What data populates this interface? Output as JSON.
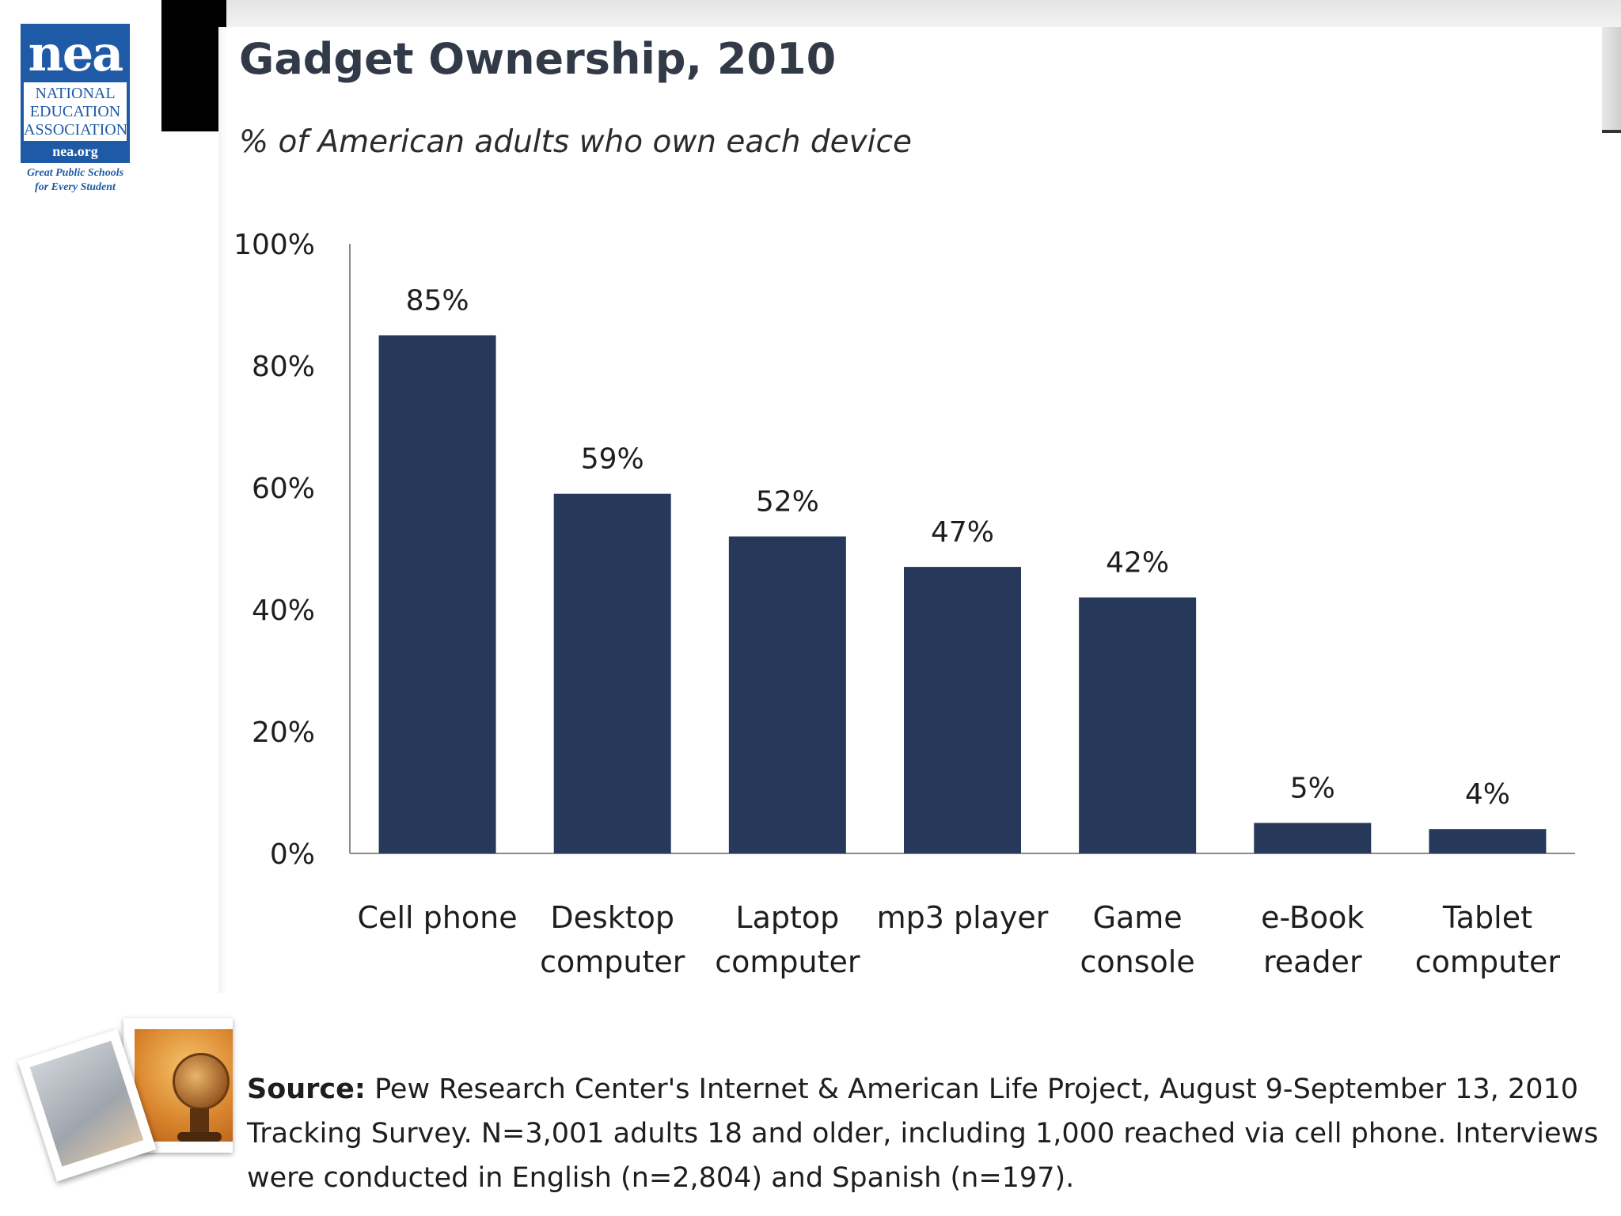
{
  "logo": {
    "mark": "nea",
    "name_lines": [
      "NATIONAL",
      "EDUCATION",
      "ASSOCIATION"
    ],
    "url": "nea.org",
    "tagline_lines": [
      "Great Public Schools",
      "for Every Student"
    ]
  },
  "chart_data": {
    "type": "bar",
    "title": "Gadget Ownership, 2010",
    "subtitle": "% of American adults who own each device",
    "categories": [
      "Cell phone",
      "Desktop computer",
      "Laptop computer",
      "mp3 player",
      "Game console",
      "e-Book reader",
      "Tablet computer"
    ],
    "category_lines": [
      [
        "Cell phone"
      ],
      [
        "Desktop",
        "computer"
      ],
      [
        "Laptop",
        "computer"
      ],
      [
        "mp3 player"
      ],
      [
        "Game",
        "console"
      ],
      [
        "e-Book",
        "reader"
      ],
      [
        "Tablet",
        "computer"
      ]
    ],
    "values": [
      85,
      59,
      52,
      47,
      42,
      5,
      4
    ],
    "value_labels": [
      "85%",
      "59%",
      "52%",
      "47%",
      "42%",
      "5%",
      "4%"
    ],
    "y_ticks": [
      0,
      20,
      40,
      60,
      80,
      100
    ],
    "y_tick_labels": [
      "0%",
      "20%",
      "40%",
      "60%",
      "80%",
      "100%"
    ],
    "ylim": [
      0,
      100
    ],
    "xlabel": "",
    "ylabel": "",
    "bar_color": "#27395a",
    "grid": false
  },
  "source": {
    "label": "Source:",
    "text": "Pew Research Center's Internet & American Life Project, August 9-September 13, 2010 Tracking Survey. N=3,001 adults 18 and older, including 1,000 reached via cell phone. Interviews were conducted in English (n=2,804) and Spanish (n=197)."
  }
}
